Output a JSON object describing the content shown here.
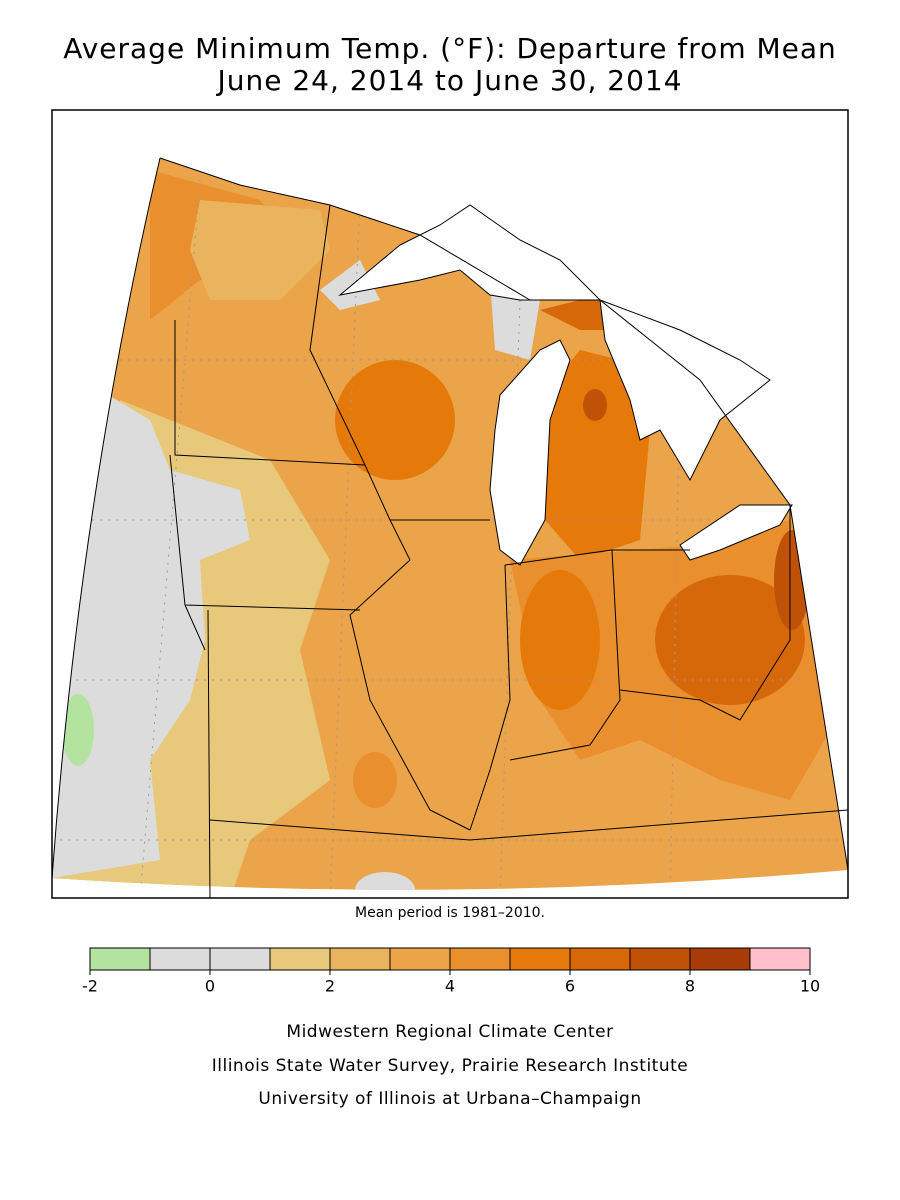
{
  "title": {
    "line1": "Average Minimum Temp. (°F): Departure from Mean",
    "line2": "June 24, 2014 to June 30, 2014"
  },
  "note": "Mean period is 1981–2010.",
  "legend": {
    "bins": [
      -2,
      -1,
      0,
      1,
      2,
      3,
      4,
      5,
      6,
      7,
      8,
      9,
      10
    ],
    "colors": [
      "#b4e3a0",
      "#dcdcdc",
      "#dcdcdc",
      "#e8c87a",
      "#eab45e",
      "#eba44a",
      "#e98f2e",
      "#e57a0a",
      "#d7680a",
      "#c05208",
      "#a83c08",
      "#ffc0cb"
    ],
    "ticks": [
      -2,
      0,
      2,
      4,
      6,
      8,
      10
    ]
  },
  "credits": [
    "Midwestern Regional Climate Center",
    "Illinois State Water Survey, Prairie Research Institute",
    "University of Illinois at Urbana–Champaign"
  ]
}
